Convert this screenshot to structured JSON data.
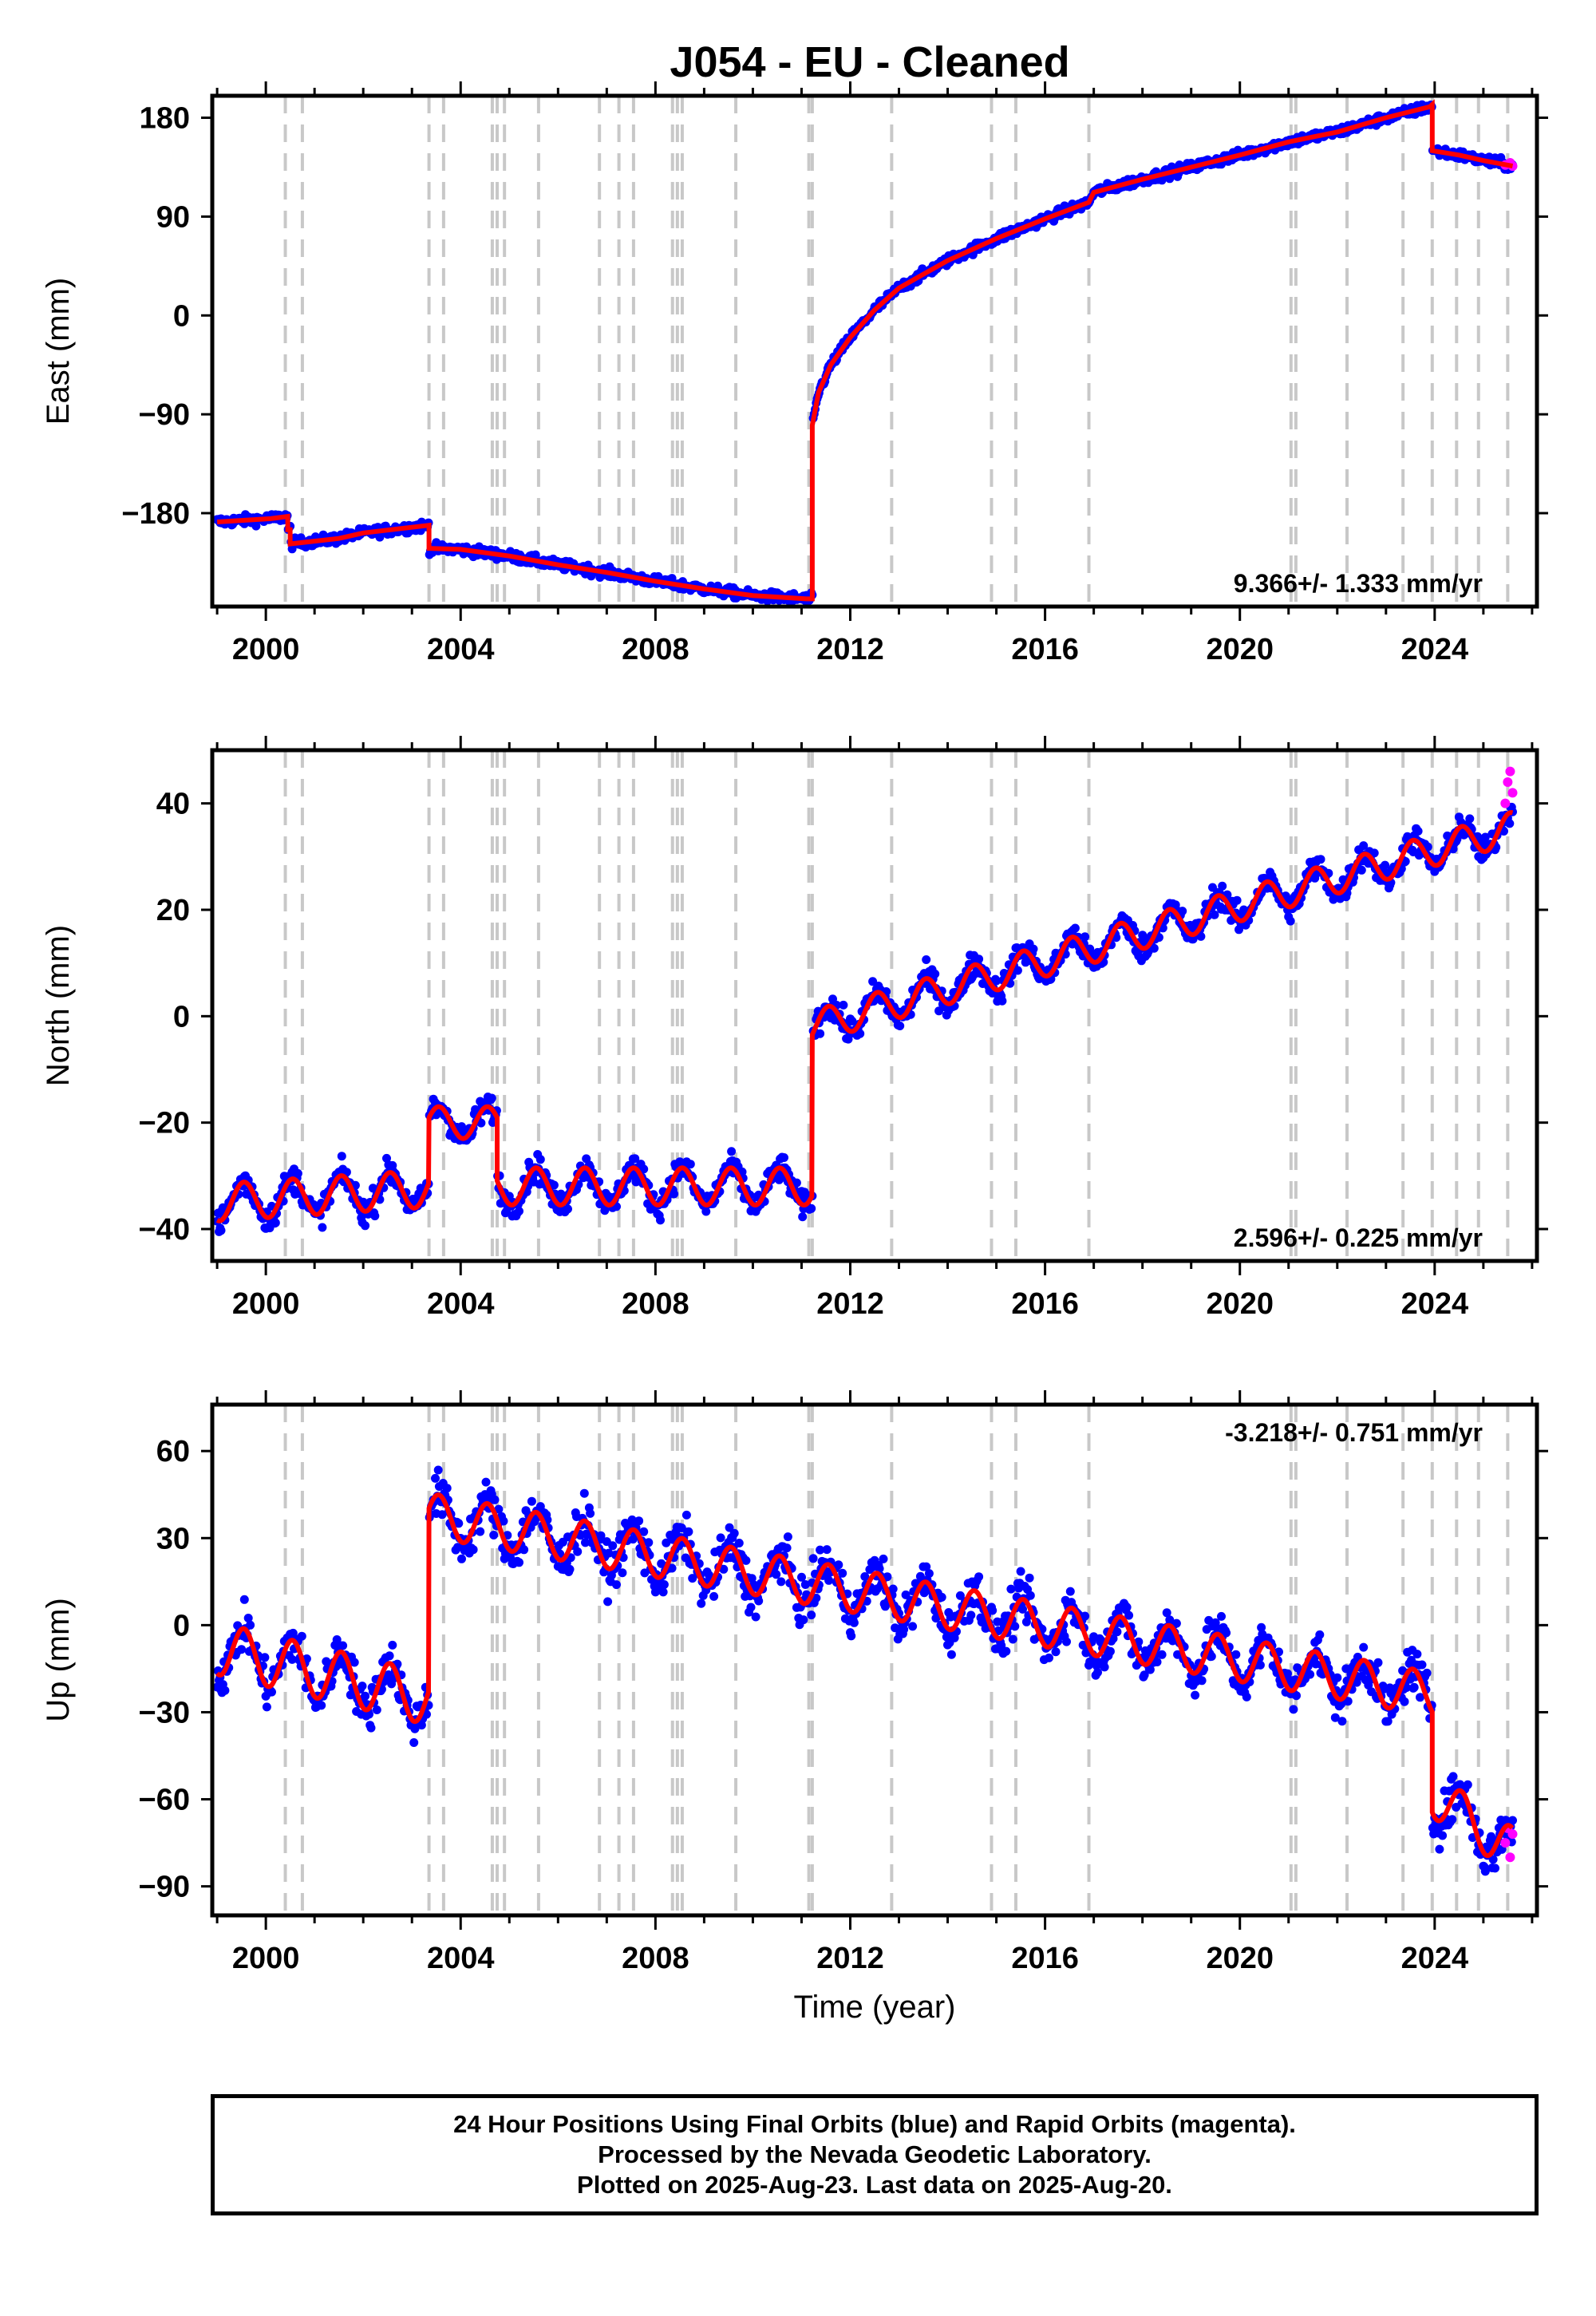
{
  "colors": {
    "final_orbits": "#0000ff",
    "rapid_orbits": "#ff00ff",
    "model": "#ff0000",
    "offset_lines": "#c8c8c8"
  },
  "caption": {
    "line1": "24 Hour Positions Using Final Orbits (blue) and Rapid Orbits (magenta).",
    "line2": "Processed by the Nevada Geodetic Laboratory.",
    "line3": "Plotted on 2025-Aug-23. Last data on 2025-Aug-20."
  },
  "chart_data": [
    {
      "type": "scatter",
      "panel": "east",
      "title": "J054  - EU - Cleaned",
      "xlabel": "",
      "ylabel": "East (mm)",
      "xlim": [
        1998.9,
        2026.1
      ],
      "ylim": [
        -265,
        200
      ],
      "yticks": [
        -180,
        -90,
        0,
        90,
        180
      ],
      "xticks": [
        2000,
        2004,
        2008,
        2012,
        2016,
        2020,
        2024
      ],
      "grid": "dashed vertical offset lines",
      "offset_lines": [
        2000.4,
        2000.75,
        2003.35,
        2003.65,
        2004.65,
        2004.75,
        2004.9,
        2005.6,
        2006.85,
        2007.25,
        2007.55,
        2008.35,
        2008.45,
        2008.55,
        2009.65,
        2011.15,
        2011.22,
        2012.85,
        2014.9,
        2015.4,
        2016.9,
        2021.05,
        2021.15,
        2022.2,
        2023.35,
        2023.95,
        2024.45,
        2024.9,
        2025.5
      ],
      "rate_label": "9.366+/- 1.333 mm/yr",
      "rate_position": "bottom-right",
      "model_points": [
        [
          1999.0,
          -188
        ],
        [
          2000.1,
          -185
        ],
        [
          2000.45,
          -183
        ],
        [
          2000.45,
          -195
        ],
        [
          2000.5,
          -195
        ],
        [
          2000.5,
          -208
        ],
        [
          2001.5,
          -203
        ],
        [
          2002.0,
          -198
        ],
        [
          2003.35,
          -191
        ],
        [
          2003.35,
          -212
        ],
        [
          2004.0,
          -213
        ],
        [
          2005.0,
          -219
        ],
        [
          2006.0,
          -227
        ],
        [
          2007.0,
          -234
        ],
        [
          2008.0,
          -242
        ],
        [
          2009.0,
          -249
        ],
        [
          2010.0,
          -255
        ],
        [
          2011.1,
          -258
        ],
        [
          2011.22,
          -258
        ],
        [
          2011.22,
          -100
        ],
        [
          2011.35,
          -70
        ],
        [
          2011.6,
          -45
        ],
        [
          2012.0,
          -20
        ],
        [
          2012.5,
          5
        ],
        [
          2013.0,
          25
        ],
        [
          2014.0,
          50
        ],
        [
          2015.0,
          70
        ],
        [
          2016.0,
          88
        ],
        [
          2016.9,
          103
        ],
        [
          2017.0,
          112
        ],
        [
          2018.0,
          124
        ],
        [
          2019.0,
          135
        ],
        [
          2020.0,
          146
        ],
        [
          2021.0,
          158
        ],
        [
          2022.0,
          167
        ],
        [
          2023.0,
          180
        ],
        [
          2023.9,
          190
        ],
        [
          2023.95,
          192
        ],
        [
          2023.95,
          150
        ],
        [
          2024.5,
          146
        ],
        [
          2025.0,
          141
        ],
        [
          2025.6,
          136
        ]
      ],
      "rapid_points": [
        [
          2025.45,
          137
        ],
        [
          2025.55,
          139
        ],
        [
          2025.6,
          136
        ]
      ]
    },
    {
      "type": "scatter",
      "panel": "north",
      "xlabel": "",
      "ylabel": "North (mm)",
      "xlim": [
        1998.9,
        2026.1
      ],
      "ylim": [
        -46,
        50
      ],
      "yticks": [
        -40,
        -20,
        0,
        20,
        40
      ],
      "xticks": [
        2000,
        2004,
        2008,
        2012,
        2016,
        2020,
        2024
      ],
      "rate_label": "2.596+/- 0.225 mm/yr",
      "rate_position": "bottom-right",
      "segments": [
        {
          "start": 1999.0,
          "end": 2003.35,
          "base": -35,
          "trend": 0.6,
          "amplitude": 3.5
        },
        {
          "start": 2003.35,
          "end": 2004.75,
          "base": -20,
          "trend": 0.0,
          "amplitude": 3.0
        },
        {
          "start": 2004.75,
          "end": 2011.22,
          "base": -32,
          "trend": 0.0,
          "amplitude": 3.5
        },
        {
          "start": 2011.22,
          "end": 2025.6,
          "base": -2,
          "trend": 2.6,
          "amplitude": 3.0
        }
      ],
      "rapid_points": [
        [
          2025.45,
          40
        ],
        [
          2025.5,
          44
        ],
        [
          2025.55,
          46
        ],
        [
          2025.6,
          42
        ]
      ]
    },
    {
      "type": "scatter",
      "panel": "up",
      "xlabel": "Time (year)",
      "ylabel": "Up (mm)",
      "xlim": [
        1998.9,
        2026.1
      ],
      "ylim": [
        -100,
        76
      ],
      "yticks": [
        -90,
        -60,
        -30,
        0,
        30,
        60
      ],
      "xticks": [
        2000,
        2004,
        2008,
        2012,
        2016,
        2020,
        2024
      ],
      "rate_label": "-3.218+/- 0.751 mm/yr",
      "rate_position": "top-right",
      "segments": [
        {
          "start": 1999.0,
          "end": 2003.35,
          "base": -8,
          "trend": -4.0,
          "amplitude": 9.0
        },
        {
          "start": 2003.35,
          "end": 2023.95,
          "base": 38,
          "trend": -3.0,
          "amplitude": 7.5
        },
        {
          "start": 2023.95,
          "end": 2025.6,
          "base": -58,
          "trend": -12.0,
          "amplitude": 8.0
        }
      ],
      "rapid_points": [
        [
          2025.45,
          -75
        ],
        [
          2025.5,
          -70
        ],
        [
          2025.55,
          -80
        ],
        [
          2025.6,
          -72
        ]
      ]
    }
  ]
}
